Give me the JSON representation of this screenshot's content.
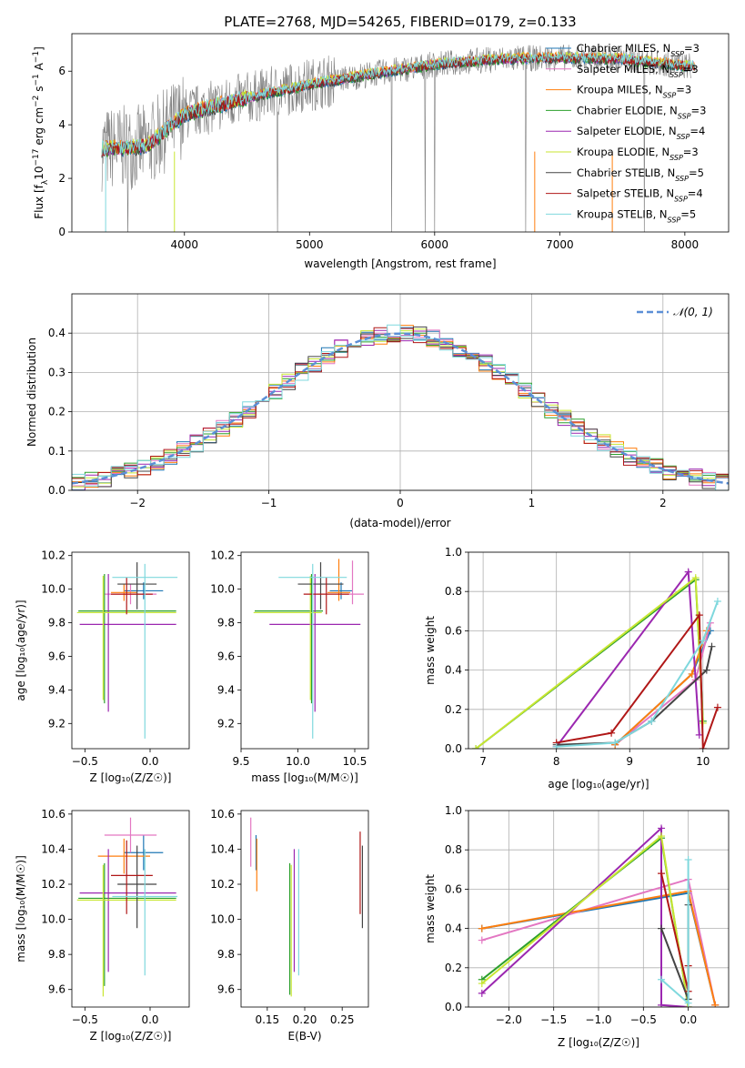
{
  "figure_title": "PLATE=2768, MJD=54265, FIBERID=0179, z=0.133",
  "colors": {
    "Chabrier MILES": "#1f77b4",
    "Salpeter MILES": "#e377c2",
    "Kroupa MILES": "#ff7f0e",
    "Chabrier ELODIE": "#2ca02c",
    "Salpeter ELODIE": "#9b27b0",
    "Kroupa ELODIE": "#c8e632",
    "Chabrier STELIB": "#444444",
    "Salpeter STELIB": "#b01717",
    "Kroupa STELIB": "#7fd8dd",
    "data": "#808080",
    "gauss": "#5b8fd6"
  },
  "legend1": [
    {
      "label": "Chabrier MILES, N",
      "sub": "SSP",
      "suffix": "=3",
      "key": "Chabrier MILES"
    },
    {
      "label": "Salpeter MILES, N",
      "sub": "SSP",
      "suffix": "=3",
      "key": "Salpeter MILES"
    },
    {
      "label": "Kroupa MILES, N",
      "sub": "SSP",
      "suffix": "=3",
      "key": "Kroupa MILES"
    },
    {
      "label": "Chabrier ELODIE, N",
      "sub": "SSP",
      "suffix": "=3",
      "key": "Chabrier ELODIE"
    },
    {
      "label": "Salpeter ELODIE, N",
      "sub": "SSP",
      "suffix": "=4",
      "key": "Salpeter ELODIE"
    },
    {
      "label": "Kroupa ELODIE, N",
      "sub": "SSP",
      "suffix": "=3",
      "key": "Kroupa ELODIE"
    },
    {
      "label": "Chabrier STELIB, N",
      "sub": "SSP",
      "suffix": "=5",
      "key": "Chabrier STELIB"
    },
    {
      "label": "Salpeter STELIB, N",
      "sub": "SSP",
      "suffix": "=4",
      "key": "Salpeter STELIB"
    },
    {
      "label": "Kroupa STELIB, N",
      "sub": "SSP",
      "suffix": "=5",
      "key": "Kroupa STELIB"
    }
  ],
  "chart_data": [
    {
      "type": "line",
      "xlabel": "wavelength [Angstrom, rest frame]",
      "ylabel": "Flux [f_λ 10^-17 erg cm^-2 s^-1 A^-1]",
      "ylabel_parts": {
        "a": "Flux [f",
        "b": "λ",
        "c": "10",
        "d": "−17",
        "e": " erg cm",
        "f": "−2",
        "g": " s",
        "h": "−1",
        "i": " A",
        "j": "−1",
        "k": "]"
      },
      "xlim": [
        3100,
        8350
      ],
      "ylim": [
        0,
        7.4
      ],
      "xticks": [
        4000,
        5000,
        6000,
        7000,
        8000
      ],
      "yticks": [
        0,
        2,
        4,
        6
      ],
      "data_series_wavelength_range": [
        3340,
        8050
      ],
      "model_series_continuum": [
        [
          3340,
          3.1
        ],
        [
          3700,
          3.2
        ],
        [
          4000,
          4.4
        ],
        [
          4500,
          5.0
        ],
        [
          5000,
          5.5
        ],
        [
          5500,
          5.9
        ],
        [
          6000,
          6.25
        ],
        [
          6500,
          6.45
        ],
        [
          7000,
          6.5
        ],
        [
          7500,
          6.45
        ],
        [
          8000,
          6.2
        ]
      ],
      "legend_entries": [
        "Chabrier MILES",
        "Salpeter MILES",
        "Kroupa MILES",
        "Chabrier ELODIE",
        "Salpeter ELODIE",
        "Kroupa ELODIE",
        "Chabrier STELIB",
        "Salpeter STELIB",
        "Kroupa STELIB"
      ]
    },
    {
      "type": "line",
      "xlabel": "(data-model)/error",
      "ylabel": "Normed distribution",
      "xlim": [
        -2.5,
        2.5
      ],
      "ylim": [
        0,
        0.5
      ],
      "xticks": [
        -2,
        -1,
        0,
        1,
        2
      ],
      "yticks": [
        0.0,
        0.1,
        0.2,
        0.3,
        0.4
      ],
      "legend": "𝒩(0, 1)",
      "histogram_bin_width": 0.1,
      "description_series": "step histograms for 9 models plus dashed Gaussian N(0,1)"
    },
    {
      "type": "scatter",
      "xlabel": "Z [log10(Z/Z⊙)]",
      "ylabel": "age  [log10(age/yr)]",
      "xlim": [
        -0.6,
        0.3
      ],
      "ylim": [
        9.05,
        10.22
      ],
      "xticks": [
        -0.5,
        0.0
      ],
      "yticks": [
        9.2,
        9.4,
        9.6,
        9.8,
        10.0,
        10.2
      ],
      "points": [
        {
          "m": "Chabrier MILES",
          "x": -0.05,
          "y": 9.99,
          "xe": [
            0.15,
            0.15
          ],
          "ye": [
            0.05,
            0.05
          ]
        },
        {
          "m": "Salpeter MILES",
          "x": -0.15,
          "y": 9.97,
          "xe": [
            0.2,
            0.2
          ],
          "ye": [
            0.06,
            0.06
          ]
        },
        {
          "m": "Kroupa MILES",
          "x": -0.2,
          "y": 9.98,
          "xe": [
            0.1,
            0.1
          ],
          "ye": [
            0.05,
            0.05
          ]
        },
        {
          "m": "Chabrier ELODIE",
          "x": -0.35,
          "y": 9.87,
          "xe": [
            0.2,
            0.55
          ],
          "ye": [
            0.55,
            0.22
          ]
        },
        {
          "m": "Salpeter ELODIE",
          "x": -0.32,
          "y": 9.79,
          "xe": [
            0.22,
            0.52
          ],
          "ye": [
            0.52,
            0.3
          ]
        },
        {
          "m": "Kroupa ELODIE",
          "x": -0.36,
          "y": 9.86,
          "xe": [
            0.2,
            0.56
          ],
          "ye": [
            0.52,
            0.22
          ]
        },
        {
          "m": "Chabrier STELIB",
          "x": -0.1,
          "y": 10.03,
          "xe": [
            0.15,
            0.15
          ],
          "ye": [
            0.15,
            0.13
          ]
        },
        {
          "m": "Salpeter STELIB",
          "x": -0.18,
          "y": 9.97,
          "xe": [
            0.12,
            0.2
          ],
          "ye": [
            0.12,
            0.1
          ]
        },
        {
          "m": "Kroupa STELIB",
          "x": -0.04,
          "y": 10.07,
          "xe": [
            0.25,
            0.25
          ],
          "ye": [
            0.96,
            0.08
          ]
        }
      ]
    },
    {
      "type": "scatter",
      "xlabel": "mass [log10(M/M⊙)]",
      "ylabel": "",
      "xlim": [
        9.5,
        10.62
      ],
      "ylim": [
        9.05,
        10.22
      ],
      "xticks": [
        9.5,
        10.0,
        10.5
      ],
      "yticks": [
        9.2,
        9.4,
        9.6,
        9.8,
        10.0,
        10.2
      ],
      "points": [
        {
          "m": "Chabrier MILES",
          "x": 10.38,
          "y": 9.99,
          "xe": [
            0.1,
            0.1
          ],
          "ye": [
            0.05,
            0.05
          ]
        },
        {
          "m": "Salpeter MILES",
          "x": 10.48,
          "y": 9.97,
          "xe": [
            0.1,
            0.1
          ],
          "ye": [
            0.06,
            0.2
          ]
        },
        {
          "m": "Kroupa MILES",
          "x": 10.36,
          "y": 9.98,
          "xe": [
            0.1,
            0.1
          ],
          "ye": [
            0.05,
            0.2
          ]
        },
        {
          "m": "Chabrier ELODIE",
          "x": 10.12,
          "y": 9.87,
          "xe": [
            0.5,
            0.1
          ],
          "ye": [
            0.55,
            0.22
          ]
        },
        {
          "m": "Salpeter ELODIE",
          "x": 10.15,
          "y": 9.79,
          "xe": [
            0.4,
            0.4
          ],
          "ye": [
            0.52,
            0.3
          ]
        },
        {
          "m": "Kroupa ELODIE",
          "x": 10.11,
          "y": 9.86,
          "xe": [
            0.5,
            0.1
          ],
          "ye": [
            0.52,
            0.22
          ]
        },
        {
          "m": "Chabrier STELIB",
          "x": 10.2,
          "y": 10.03,
          "xe": [
            0.2,
            0.2
          ],
          "ye": [
            0.15,
            0.13
          ]
        },
        {
          "m": "Salpeter STELIB",
          "x": 10.25,
          "y": 9.97,
          "xe": [
            0.2,
            0.2
          ],
          "ye": [
            0.12,
            0.1
          ]
        },
        {
          "m": "Kroupa STELIB",
          "x": 10.13,
          "y": 10.07,
          "xe": [
            0.3,
            0.3
          ],
          "ye": [
            0.96,
            0.08
          ]
        }
      ]
    },
    {
      "type": "line",
      "xlabel": "age  [log10(age/yr)]",
      "ylabel": "mass weight",
      "xlim": [
        6.8,
        10.35
      ],
      "ylim": [
        0,
        1
      ],
      "xticks": [
        7,
        8,
        9,
        10
      ],
      "yticks": [
        0.0,
        0.2,
        0.4,
        0.6,
        0.8,
        1.0
      ],
      "series": [
        {
          "m": "Chabrier MILES",
          "x": [
            8.8,
            9.85,
            10.1
          ],
          "y": [
            0.02,
            0.38,
            0.6
          ]
        },
        {
          "m": "Salpeter MILES",
          "x": [
            8.8,
            9.9,
            10.1
          ],
          "y": [
            0.02,
            0.35,
            0.64
          ]
        },
        {
          "m": "Kroupa MILES",
          "x": [
            8.8,
            9.85,
            10.05
          ],
          "y": [
            0.02,
            0.38,
            0.6
          ]
        },
        {
          "m": "Chabrier ELODIE",
          "x": [
            6.9,
            9.9,
            10.0
          ],
          "y": [
            0.0,
            0.86,
            0.14
          ]
        },
        {
          "m": "Salpeter ELODIE",
          "x": [
            8.0,
            9.8,
            9.95
          ],
          "y": [
            0.01,
            0.9,
            0.07
          ]
        },
        {
          "m": "Kroupa ELODIE",
          "x": [
            6.9,
            9.9,
            10.0
          ],
          "y": [
            0.0,
            0.87,
            0.13
          ]
        },
        {
          "m": "Chabrier STELIB",
          "x": [
            8.0,
            8.8,
            9.3,
            10.05,
            10.12
          ],
          "y": [
            0.02,
            0.03,
            0.14,
            0.4,
            0.52
          ]
        },
        {
          "m": "Salpeter STELIB",
          "x": [
            8.0,
            8.75,
            9.95,
            10.0,
            10.2
          ],
          "y": [
            0.03,
            0.08,
            0.68,
            0.0,
            0.21
          ]
        },
        {
          "m": "Kroupa STELIB",
          "x": [
            8.0,
            8.8,
            9.3,
            10.0,
            10.2
          ],
          "y": [
            0.01,
            0.03,
            0.14,
            0.55,
            0.75
          ]
        }
      ]
    },
    {
      "type": "scatter",
      "xlabel": "Z [log10(Z/Z⊙)]",
      "ylabel": "mass [log10(M/M⊙)]",
      "xlim": [
        -0.6,
        0.3
      ],
      "ylim": [
        9.5,
        10.62
      ],
      "xticks": [
        -0.5,
        0.0
      ],
      "yticks": [
        9.6,
        9.8,
        10.0,
        10.2,
        10.4,
        10.6
      ],
      "points": [
        {
          "m": "Chabrier MILES",
          "x": -0.05,
          "y": 10.38,
          "xe": [
            0.15,
            0.15
          ],
          "ye": [
            0.1,
            0.1
          ]
        },
        {
          "m": "Salpeter MILES",
          "x": -0.15,
          "y": 10.48,
          "xe": [
            0.2,
            0.2
          ],
          "ye": [
            0.1,
            0.1
          ]
        },
        {
          "m": "Kroupa MILES",
          "x": -0.2,
          "y": 10.36,
          "xe": [
            0.2,
            0.2
          ],
          "ye": [
            0.1,
            0.1
          ]
        },
        {
          "m": "Chabrier ELODIE",
          "x": -0.35,
          "y": 10.12,
          "xe": [
            0.2,
            0.55
          ],
          "ye": [
            0.5,
            0.2
          ]
        },
        {
          "m": "Salpeter ELODIE",
          "x": -0.32,
          "y": 10.15,
          "xe": [
            0.22,
            0.52
          ],
          "ye": [
            0.45,
            0.25
          ]
        },
        {
          "m": "Kroupa ELODIE",
          "x": -0.36,
          "y": 10.11,
          "xe": [
            0.2,
            0.56
          ],
          "ye": [
            0.55,
            0.2
          ]
        },
        {
          "m": "Chabrier STELIB",
          "x": -0.1,
          "y": 10.2,
          "xe": [
            0.15,
            0.15
          ],
          "ye": [
            0.25,
            0.22
          ]
        },
        {
          "m": "Salpeter STELIB",
          "x": -0.18,
          "y": 10.25,
          "xe": [
            0.12,
            0.2
          ],
          "ye": [
            0.22,
            0.2
          ]
        },
        {
          "m": "Kroupa STELIB",
          "x": -0.04,
          "y": 10.13,
          "xe": [
            0.25,
            0.25
          ],
          "ye": [
            0.45,
            0.27
          ]
        }
      ]
    },
    {
      "type": "scatter",
      "xlabel": "E(B-V)",
      "ylabel": "",
      "xlim": [
        0.115,
        0.285
      ],
      "ylim": [
        9.5,
        10.62
      ],
      "xticks": [
        0.15,
        0.2,
        0.25
      ],
      "yticks": [
        9.6,
        9.8,
        10.0,
        10.2,
        10.4,
        10.6
      ],
      "points": [
        {
          "m": "Chabrier MILES",
          "x": 0.135,
          "y": 10.38,
          "ye": [
            0.1,
            0.1
          ]
        },
        {
          "m": "Salpeter MILES",
          "x": 0.128,
          "y": 10.48,
          "ye": [
            0.18,
            0.1
          ]
        },
        {
          "m": "Kroupa MILES",
          "x": 0.136,
          "y": 10.36,
          "ye": [
            0.2,
            0.1
          ]
        },
        {
          "m": "Chabrier ELODIE",
          "x": 0.18,
          "y": 10.12,
          "ye": [
            0.55,
            0.2
          ]
        },
        {
          "m": "Salpeter ELODIE",
          "x": 0.186,
          "y": 10.15,
          "ye": [
            0.45,
            0.25
          ]
        },
        {
          "m": "Kroupa ELODIE",
          "x": 0.182,
          "y": 10.11,
          "ye": [
            0.55,
            0.2
          ]
        },
        {
          "m": "Chabrier STELIB",
          "x": 0.277,
          "y": 10.2,
          "ye": [
            0.25,
            0.22
          ]
        },
        {
          "m": "Salpeter STELIB",
          "x": 0.274,
          "y": 10.25,
          "ye": [
            0.22,
            0.25
          ]
        },
        {
          "m": "Kroupa STELIB",
          "x": 0.192,
          "y": 10.13,
          "ye": [
            0.45,
            0.27
          ]
        }
      ]
    },
    {
      "type": "line",
      "xlabel": "Z [log10(Z/Z⊙)]",
      "ylabel": "mass weight",
      "xlim": [
        -2.45,
        0.45
      ],
      "ylim": [
        0,
        1
      ],
      "xticks": [
        -2.0,
        -1.5,
        -1.0,
        -0.5,
        0.0
      ],
      "yticks": [
        0.0,
        0.2,
        0.4,
        0.6,
        0.8,
        1.0
      ],
      "series": [
        {
          "m": "Chabrier MILES",
          "x": [
            -2.3,
            0.0,
            0.3
          ],
          "y": [
            0.4,
            0.58,
            0.01
          ]
        },
        {
          "m": "Salpeter MILES",
          "x": [
            -2.3,
            0.0,
            0.3
          ],
          "y": [
            0.34,
            0.65,
            0.01
          ]
        },
        {
          "m": "Kroupa MILES",
          "x": [
            -2.3,
            0.0,
            0.3
          ],
          "y": [
            0.4,
            0.59,
            0.01
          ]
        },
        {
          "m": "Chabrier ELODIE",
          "x": [
            -2.3,
            -0.3,
            0.0
          ],
          "y": [
            0.14,
            0.86,
            0.0
          ]
        },
        {
          "m": "Salpeter ELODIE",
          "x": [
            -2.3,
            -0.3,
            -0.3,
            0.0
          ],
          "y": [
            0.07,
            0.91,
            0.01,
            0.0
          ]
        },
        {
          "m": "Kroupa ELODIE",
          "x": [
            -2.3,
            -0.3,
            0.0
          ],
          "y": [
            0.12,
            0.87,
            0.0
          ]
        },
        {
          "m": "Chabrier STELIB",
          "x": [
            -0.3,
            0.0,
            0.0
          ],
          "y": [
            0.4,
            0.04,
            0.52
          ]
        },
        {
          "m": "Salpeter STELIB",
          "x": [
            -0.3,
            0.0,
            0.0
          ],
          "y": [
            0.68,
            0.08,
            0.21
          ]
        },
        {
          "m": "Kroupa STELIB",
          "x": [
            -0.3,
            0.0,
            0.0
          ],
          "y": [
            0.14,
            0.02,
            0.75
          ]
        }
      ]
    }
  ]
}
